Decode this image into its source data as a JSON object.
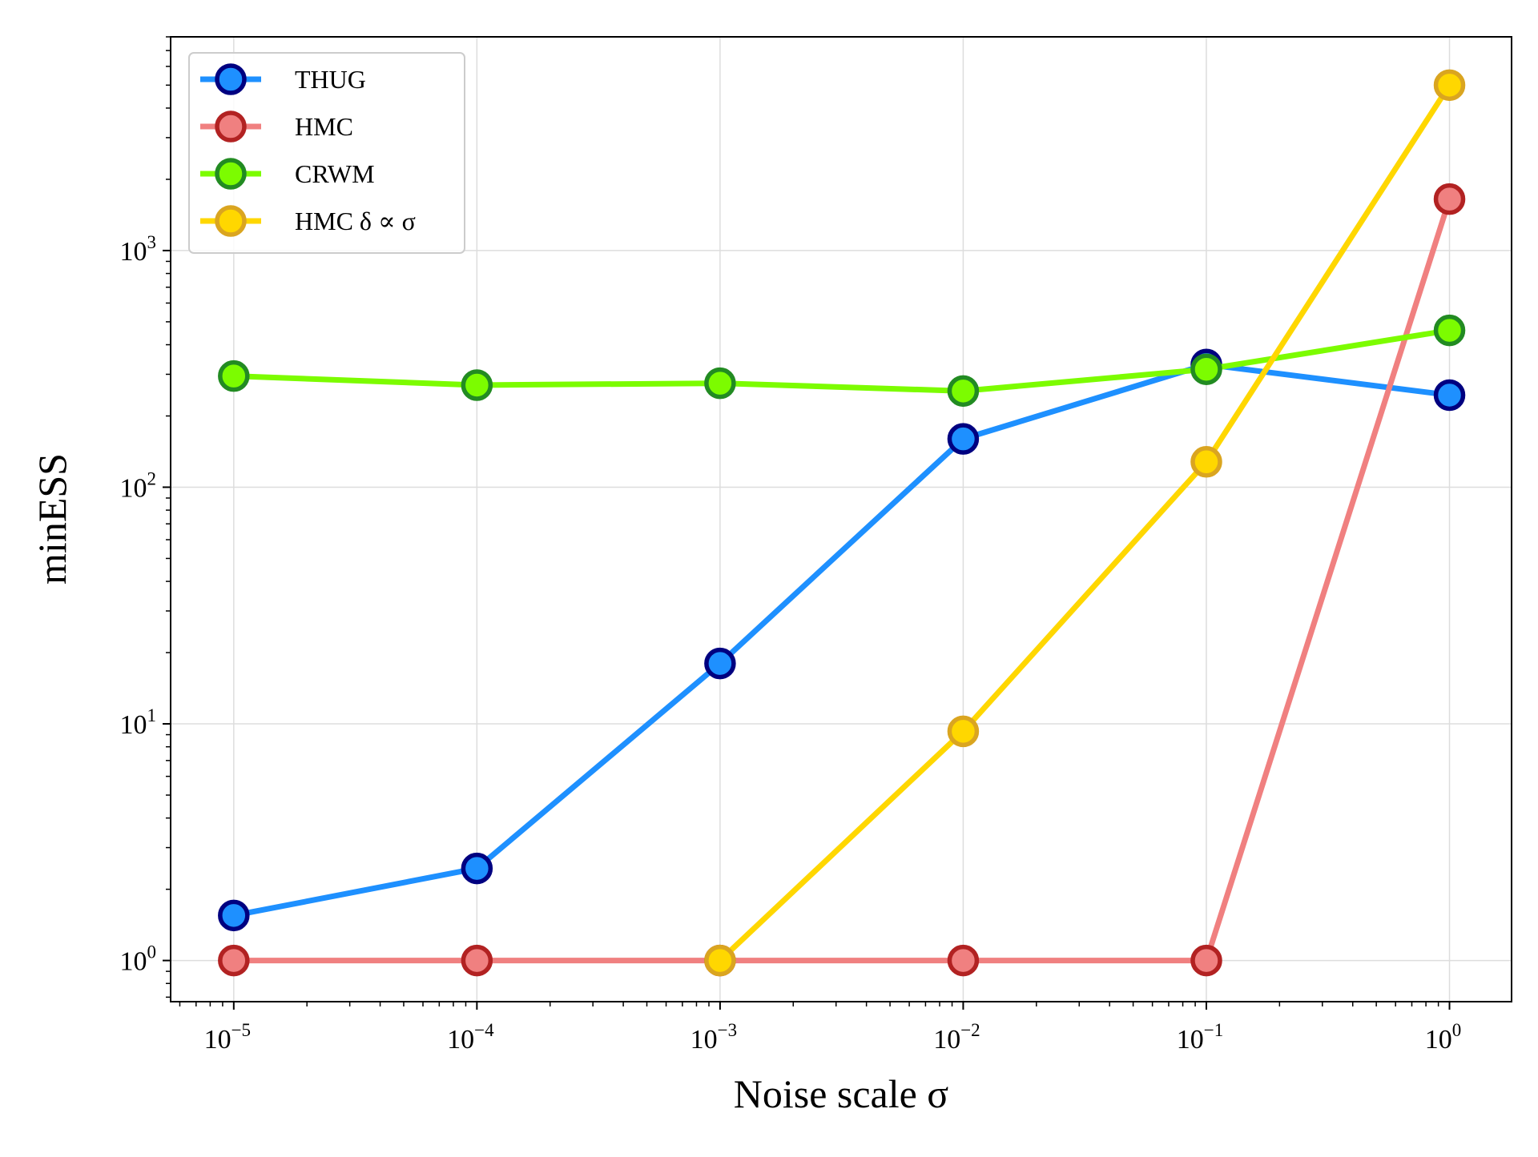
{
  "chart_data": {
    "type": "line",
    "xlabel": "Noise scale σ",
    "ylabel": "minESS",
    "xscale": "log",
    "yscale": "log",
    "xlim": [
      5.5e-06,
      1.8
    ],
    "ylim": [
      0.67,
      8000
    ],
    "grid": true,
    "legend_position": "top-left",
    "x": [
      1e-05,
      0.0001,
      0.001,
      0.01,
      0.1,
      1
    ],
    "x_ticks": [
      {
        "value": 1e-05,
        "base": "10",
        "exp": "−5"
      },
      {
        "value": 0.0001,
        "base": "10",
        "exp": "−4"
      },
      {
        "value": 0.001,
        "base": "10",
        "exp": "−3"
      },
      {
        "value": 0.01,
        "base": "10",
        "exp": "−2"
      },
      {
        "value": 0.1,
        "base": "10",
        "exp": "−1"
      },
      {
        "value": 1,
        "base": "10",
        "exp": "0"
      }
    ],
    "y_ticks": [
      {
        "value": 1,
        "base": "10",
        "exp": "0"
      },
      {
        "value": 10,
        "base": "10",
        "exp": "1"
      },
      {
        "value": 100,
        "base": "10",
        "exp": "2"
      },
      {
        "value": 1000,
        "base": "10",
        "exp": "3"
      }
    ],
    "series": [
      {
        "name": "THUG",
        "line_color": "#1e90ff",
        "marker_fill": "#1e90ff",
        "marker_edge": "#000080",
        "values": [
          1.55,
          2.45,
          18,
          160,
          330,
          245
        ]
      },
      {
        "name": "HMC",
        "line_color": "#f08080",
        "marker_fill": "#f08080",
        "marker_edge": "#b22222",
        "values": [
          1,
          1,
          1,
          1,
          1,
          1650
        ]
      },
      {
        "name": "CRWM",
        "line_color": "#7cfc00",
        "marker_fill": "#7cfc00",
        "marker_edge": "#228b22",
        "values": [
          295,
          270,
          275,
          255,
          315,
          460
        ]
      },
      {
        "name": "HMC δ ∝ σ",
        "line_color": "#ffd700",
        "marker_fill": "#ffd700",
        "marker_edge": "#daa520",
        "values": [
          null,
          null,
          1,
          9.3,
          128,
          5000
        ]
      }
    ]
  }
}
